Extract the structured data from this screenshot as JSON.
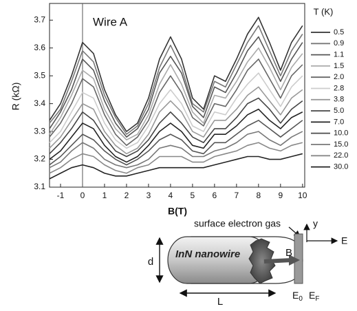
{
  "chart_data": {
    "type": "line",
    "annotation": "Wire A",
    "xlabel": "B(T)",
    "ylabel": "R (kΩ)",
    "legend_title": "T (K)",
    "zero_line": true,
    "x": [
      -1.5,
      -1,
      -0.5,
      0,
      0.5,
      1,
      1.5,
      2,
      2.5,
      3,
      3.5,
      4,
      4.5,
      5,
      5.5,
      6,
      6.5,
      7,
      7.5,
      8,
      8.5,
      9,
      9.5,
      10
    ],
    "xlim": [
      -1.5,
      10.1
    ],
    "ylim": [
      3.1,
      3.76
    ],
    "xticks": [
      -1,
      0,
      1,
      2,
      3,
      4,
      5,
      6,
      7,
      8,
      9,
      10
    ],
    "yticks": [
      3.1,
      3.2,
      3.3,
      3.4,
      3.5,
      3.6,
      3.7
    ],
    "series": [
      {
        "name": "0.5",
        "color": "#333333",
        "values": [
          3.34,
          3.4,
          3.5,
          3.62,
          3.58,
          3.45,
          3.36,
          3.3,
          3.33,
          3.42,
          3.56,
          3.64,
          3.56,
          3.42,
          3.38,
          3.5,
          3.48,
          3.56,
          3.65,
          3.71,
          3.62,
          3.52,
          3.62,
          3.68
        ]
      },
      {
        "name": "0.9",
        "color": "#777777",
        "values": [
          3.33,
          3.38,
          3.48,
          3.59,
          3.55,
          3.43,
          3.35,
          3.29,
          3.32,
          3.4,
          3.53,
          3.61,
          3.53,
          3.4,
          3.37,
          3.48,
          3.46,
          3.54,
          3.62,
          3.68,
          3.59,
          3.5,
          3.59,
          3.65
        ]
      },
      {
        "name": "1.1",
        "color": "#555555",
        "values": [
          3.31,
          3.37,
          3.45,
          3.56,
          3.52,
          3.41,
          3.33,
          3.28,
          3.31,
          3.38,
          3.51,
          3.57,
          3.51,
          3.39,
          3.35,
          3.46,
          3.44,
          3.51,
          3.59,
          3.64,
          3.56,
          3.48,
          3.56,
          3.62
        ]
      },
      {
        "name": "1.5",
        "color": "#aaaaaa",
        "values": [
          3.29,
          3.35,
          3.43,
          3.52,
          3.49,
          3.38,
          3.31,
          3.27,
          3.29,
          3.36,
          3.47,
          3.54,
          3.47,
          3.37,
          3.33,
          3.43,
          3.42,
          3.48,
          3.55,
          3.6,
          3.53,
          3.45,
          3.53,
          3.58
        ]
      },
      {
        "name": "2.0",
        "color": "#666666",
        "values": [
          3.28,
          3.33,
          3.4,
          3.49,
          3.46,
          3.36,
          3.29,
          3.25,
          3.28,
          3.34,
          3.44,
          3.5,
          3.44,
          3.35,
          3.32,
          3.4,
          3.39,
          3.45,
          3.52,
          3.56,
          3.49,
          3.42,
          3.5,
          3.54
        ]
      },
      {
        "name": "2.8",
        "color": "#cccccc",
        "values": [
          3.26,
          3.3,
          3.37,
          3.44,
          3.42,
          3.33,
          3.27,
          3.24,
          3.26,
          3.32,
          3.4,
          3.45,
          3.4,
          3.32,
          3.3,
          3.37,
          3.36,
          3.42,
          3.47,
          3.51,
          3.45,
          3.39,
          3.46,
          3.5
        ]
      },
      {
        "name": "3.8",
        "color": "#999999",
        "values": [
          3.24,
          3.28,
          3.34,
          3.4,
          3.38,
          3.3,
          3.25,
          3.22,
          3.24,
          3.29,
          3.37,
          3.41,
          3.37,
          3.3,
          3.28,
          3.34,
          3.34,
          3.38,
          3.43,
          3.46,
          3.41,
          3.36,
          3.42,
          3.45
        ]
      },
      {
        "name": "5.0",
        "color": "#444444",
        "values": [
          3.22,
          3.26,
          3.31,
          3.37,
          3.34,
          3.28,
          3.23,
          3.21,
          3.23,
          3.27,
          3.33,
          3.37,
          3.33,
          3.28,
          3.26,
          3.31,
          3.31,
          3.35,
          3.4,
          3.42,
          3.38,
          3.33,
          3.38,
          3.41
        ]
      },
      {
        "name": "7.0",
        "color": "#222222",
        "values": [
          3.2,
          3.23,
          3.28,
          3.33,
          3.31,
          3.25,
          3.21,
          3.19,
          3.21,
          3.25,
          3.3,
          3.33,
          3.3,
          3.25,
          3.24,
          3.29,
          3.29,
          3.32,
          3.36,
          3.38,
          3.34,
          3.31,
          3.35,
          3.37
        ]
      },
      {
        "name": "10.0",
        "color": "#555555",
        "values": [
          3.18,
          3.21,
          3.25,
          3.29,
          3.27,
          3.23,
          3.2,
          3.18,
          3.2,
          3.23,
          3.27,
          3.29,
          3.27,
          3.23,
          3.22,
          3.26,
          3.26,
          3.29,
          3.32,
          3.34,
          3.31,
          3.28,
          3.31,
          3.34
        ]
      },
      {
        "name": "15.0",
        "color": "#777777",
        "values": [
          3.17,
          3.19,
          3.23,
          3.26,
          3.24,
          3.2,
          3.18,
          3.17,
          3.18,
          3.2,
          3.24,
          3.25,
          3.24,
          3.21,
          3.21,
          3.23,
          3.24,
          3.26,
          3.29,
          3.3,
          3.27,
          3.25,
          3.28,
          3.3
        ]
      },
      {
        "name": "22.0",
        "color": "#888888",
        "values": [
          3.15,
          3.17,
          3.2,
          3.22,
          3.21,
          3.18,
          3.16,
          3.15,
          3.17,
          3.18,
          3.21,
          3.21,
          3.21,
          3.19,
          3.19,
          3.21,
          3.22,
          3.23,
          3.25,
          3.26,
          3.24,
          3.23,
          3.25,
          3.26
        ]
      },
      {
        "name": "30.0",
        "color": "#222222",
        "values": [
          3.13,
          3.15,
          3.17,
          3.18,
          3.17,
          3.15,
          3.14,
          3.14,
          3.15,
          3.16,
          3.17,
          3.17,
          3.17,
          3.17,
          3.17,
          3.18,
          3.19,
          3.2,
          3.21,
          3.21,
          3.2,
          3.2,
          3.21,
          3.22
        ]
      }
    ]
  },
  "diagram": {
    "surface_label": "surface electron gas",
    "wire_label": "InN nanowire",
    "b_label": "B",
    "d_label": "d",
    "l_label": "L",
    "e_axis": "E",
    "y_axis": "y",
    "e0": {
      "base": "E",
      "sub": "0"
    },
    "ef": {
      "base": "E",
      "sub": "F"
    }
  }
}
